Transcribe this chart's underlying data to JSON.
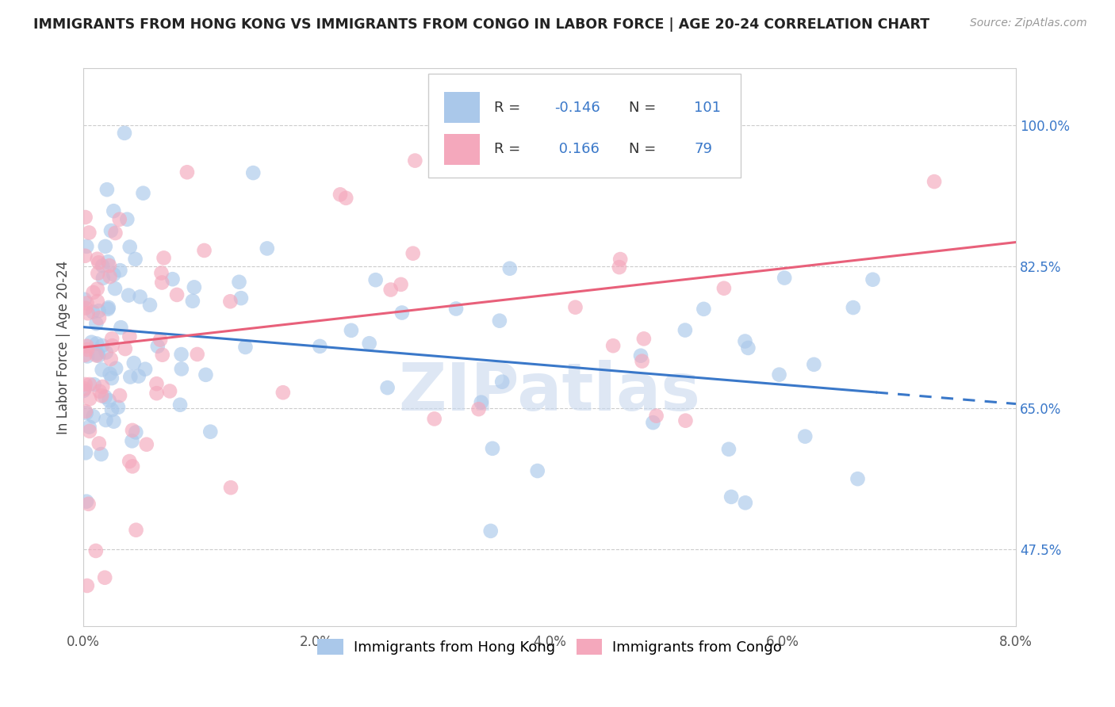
{
  "title": "IMMIGRANTS FROM HONG KONG VS IMMIGRANTS FROM CONGO IN LABOR FORCE | AGE 20-24 CORRELATION CHART",
  "source": "Source: ZipAtlas.com",
  "ylabel_label": "In Labor Force | Age 20-24",
  "legend_label_blue": "Immigrants from Hong Kong",
  "legend_label_pink": "Immigrants from Congo",
  "R_blue": -0.146,
  "N_blue": 101,
  "R_pink": 0.166,
  "N_pink": 79,
  "x_min": 0.0,
  "x_max": 8.0,
  "y_min": 38.0,
  "y_max": 107.0,
  "yticks": [
    47.5,
    65.0,
    82.5,
    100.0
  ],
  "xticks": [
    0.0,
    2.0,
    4.0,
    6.0,
    8.0
  ],
  "color_blue": "#aac8ea",
  "color_pink": "#f4a8bc",
  "line_color_blue": "#3a78c9",
  "line_color_pink": "#e8607a",
  "background_color": "#ffffff",
  "watermark": "ZIPatlas",
  "watermark_color": "#c8d8ee",
  "blue_trend_x0": 0.0,
  "blue_trend_y0": 75.0,
  "blue_trend_x1": 8.0,
  "blue_trend_y1": 65.5,
  "blue_solid_end_x": 6.8,
  "pink_trend_x0": 0.0,
  "pink_trend_y0": 72.5,
  "pink_trend_x1": 8.0,
  "pink_trend_y1": 85.5
}
